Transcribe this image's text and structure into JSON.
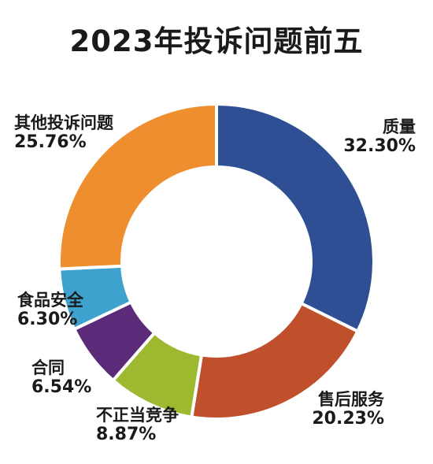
{
  "chart_data": {
    "type": "pie",
    "title": "2023年投诉问题前五",
    "categories": [
      "质量",
      "售后服务",
      "不正当竞争",
      "合同",
      "食品安全",
      "其他投诉问题"
    ],
    "values": [
      32.3,
      20.23,
      8.87,
      6.54,
      6.3,
      25.76
    ],
    "value_labels": [
      "32.30%",
      "20.23%",
      "8.87%",
      "6.54%",
      "6.30%",
      "25.76%"
    ],
    "colors": [
      "#2E4F93",
      "#C0502C",
      "#9DB930",
      "#5B2A78",
      "#3FA1CD",
      "#EE8E2E"
    ],
    "donut": true,
    "legend": "none"
  }
}
